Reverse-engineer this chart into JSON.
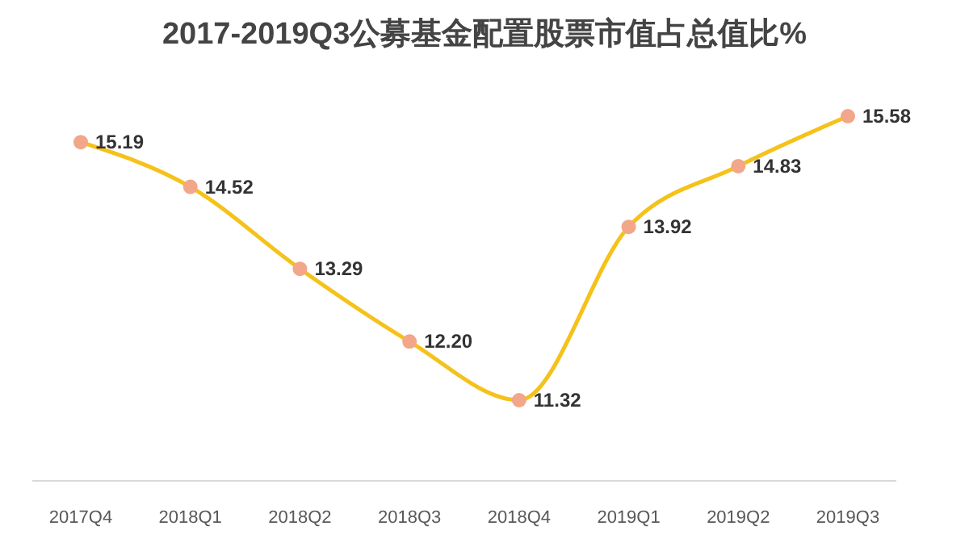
{
  "chart_data": {
    "type": "line",
    "title": "2017-2019Q3公募基金配置股票市值占总值比%",
    "categories": [
      "2017Q4",
      "2018Q1",
      "2018Q2",
      "2018Q3",
      "2018Q4",
      "2019Q1",
      "2019Q2",
      "2019Q3"
    ],
    "series": [
      {
        "color": "#f5c21b",
        "colors": [
          "#f2a68a",
          "#f2a68a",
          "#f2a68a",
          "#f2a68a",
          "#f2a68a",
          "#f2a68a",
          "#f2a68a",
          "#f2a68a"
        ],
        "values": [
          15.19,
          14.52,
          13.29,
          12.2,
          11.32,
          13.92,
          14.83,
          15.58
        ],
        "value_labels": [
          "15.19",
          "14.52",
          "13.29",
          "12.20",
          "11.32",
          "13.92",
          "14.83",
          "15.58"
        ]
      }
    ],
    "marker": "circle",
    "legend": false,
    "grid": false
  }
}
